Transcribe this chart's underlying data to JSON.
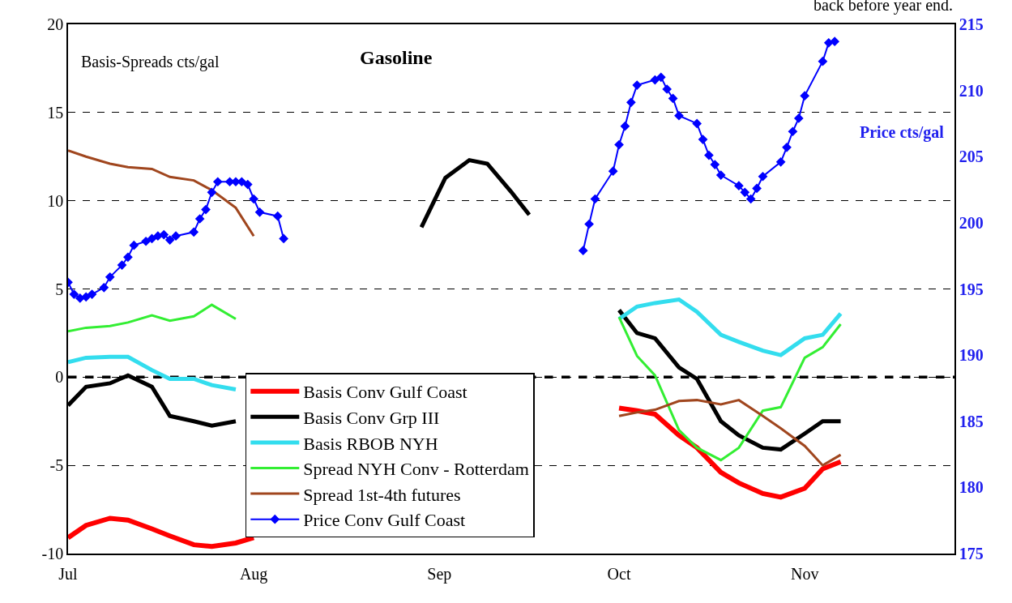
{
  "chart_data": {
    "type": "line",
    "title": "Gasoline",
    "ylabel": "Basis-Spreads cts/gal",
    "y2label": "Price cts/gal",
    "annotations": [
      "back before year end."
    ],
    "x": [
      "--07-01",
      "--07-04",
      "--07-08",
      "--07-11",
      "--07-15",
      "--07-18",
      "--07-22",
      "--07-25",
      "--07-29",
      "--08-01",
      "--08-15",
      "--08-29",
      "--09-02",
      "--09-06",
      "--09-09",
      "--09-13",
      "--09-16",
      "--09-23",
      "--10-01",
      "--10-04",
      "--10-07",
      "--10-11",
      "--10-14",
      "--10-18",
      "--10-21",
      "--10-25",
      "--10-28",
      "--11-01",
      "--11-04",
      "--11-07"
    ],
    "series": [
      {
        "name": "Basis Conv Gulf Coast",
        "color": "#ff0000",
        "values": [
          -9.1,
          -8.4,
          -8.0,
          -8.1,
          -8.6,
          -9.0,
          -9.5,
          -9.6,
          -9.4,
          -9.1,
          null,
          null,
          null,
          null,
          null,
          null,
          null,
          null,
          -1.75,
          -1.9,
          -2.1,
          -3.3,
          -4.0,
          -5.4,
          -6.0,
          -6.6,
          -6.8,
          -6.3,
          -5.2,
          -4.8
        ]
      },
      {
        "name": "Basis Conv Grp III",
        "color": "#000000",
        "values": [
          -1.6,
          -0.55,
          -0.35,
          0.1,
          -0.55,
          -2.2,
          -2.5,
          -2.75,
          -2.5,
          null,
          null,
          8.5,
          11.3,
          12.3,
          12.1,
          10.5,
          9.2,
          null,
          3.8,
          2.5,
          2.2,
          0.55,
          -0.1,
          -2.5,
          -3.3,
          -4.0,
          -4.1,
          -3.2,
          -2.5,
          -2.5
        ]
      },
      {
        "name": "Basis RBOB NYH",
        "color": "#33ddee",
        "values": [
          0.85,
          1.1,
          1.15,
          1.15,
          0.4,
          -0.1,
          -0.1,
          -0.45,
          -0.7,
          null,
          null,
          null,
          null,
          null,
          null,
          null,
          null,
          null,
          3.3,
          4.0,
          4.2,
          4.4,
          3.7,
          2.4,
          2.0,
          1.5,
          1.25,
          2.2,
          2.4,
          3.6
        ]
      },
      {
        "name": "Spread NYH Conv - Rotterdam",
        "color": "#33ee33",
        "values": [
          2.6,
          2.8,
          2.9,
          3.1,
          3.5,
          3.2,
          3.45,
          4.1,
          3.3,
          null,
          null,
          null,
          null,
          null,
          null,
          null,
          null,
          null,
          3.4,
          1.2,
          0.1,
          -3.0,
          -4.0,
          -4.7,
          -4.0,
          -1.9,
          -1.7,
          1.1,
          1.7,
          3.0
        ]
      },
      {
        "name": "Spread 1st-4th futures",
        "color": "#a0461e",
        "values": [
          12.85,
          12.5,
          12.1,
          11.9,
          11.8,
          11.35,
          11.15,
          10.6,
          9.6,
          8.0,
          null,
          null,
          null,
          null,
          null,
          null,
          null,
          null,
          -2.2,
          -2.0,
          -1.85,
          -1.35,
          -1.3,
          -1.55,
          -1.3,
          -2.2,
          -2.9,
          -3.9,
          -5.0,
          -4.4
        ]
      },
      {
        "name": "Price Conv Gulf Coast",
        "color": "#0000ff",
        "axis": "y2",
        "marker": "diamond",
        "x": [
          "--07-01",
          "--07-02",
          "--07-03",
          "--07-04",
          "--07-05",
          "--07-07",
          "--07-08",
          "--07-10",
          "--07-11",
          "--07-12",
          "--07-14",
          "--07-15",
          "--07-16",
          "--07-17",
          "--07-18",
          "--07-19",
          "--07-22",
          "--07-23",
          "--07-24",
          "--07-25",
          "--07-26",
          "--07-28",
          "--07-29",
          "--07-30",
          "--07-31",
          "--08-01",
          "--08-02",
          "--08-05",
          "--08-06",
          "--09-01",
          "--09-25",
          "--09-26",
          "--09-27",
          "--09-30",
          "--10-01",
          "--10-02",
          "--10-03",
          "--10-04",
          "--10-07",
          "--10-08",
          "--10-09",
          "--10-10",
          "--10-11",
          "--10-14",
          "--10-15",
          "--10-16",
          "--10-17",
          "--10-18",
          "--10-21",
          "--10-22",
          "--10-23",
          "--10-24",
          "--10-25",
          "--10-28",
          "--10-29",
          "--10-30",
          "--10-31",
          "--11-01",
          "--11-04",
          "--11-05",
          "--11-06"
        ],
        "values": [
          195.5,
          194.6,
          194.3,
          194.4,
          194.6,
          195.1,
          195.9,
          196.8,
          197.4,
          198.3,
          198.6,
          198.8,
          199.0,
          199.1,
          198.7,
          199.0,
          199.3,
          200.3,
          201.0,
          202.3,
          203.1,
          203.1,
          203.1,
          203.1,
          202.9,
          201.8,
          200.8,
          200.5,
          198.8,
          null,
          197.9,
          199.9,
          201.8,
          203.9,
          205.9,
          207.3,
          209.1,
          210.4,
          210.8,
          211.0,
          210.1,
          209.4,
          208.1,
          207.5,
          206.3,
          205.1,
          204.4,
          203.6,
          202.8,
          202.3,
          201.8,
          202.6,
          203.5,
          204.6,
          205.7,
          206.9,
          207.9,
          209.6,
          212.2,
          213.6,
          213.7
        ]
      }
    ],
    "xlim": [
      "--07-01",
      "--11-26"
    ],
    "xticks": [
      {
        "value": "--07-01",
        "label": "Jul"
      },
      {
        "value": "--08-01",
        "label": "Aug"
      },
      {
        "value": "--09-01",
        "label": "Sep"
      },
      {
        "value": "--10-01",
        "label": "Oct"
      },
      {
        "value": "--11-01",
        "label": "Nov"
      }
    ],
    "ylim": [
      -10,
      20
    ],
    "yticks": [
      -10,
      -5,
      0,
      5,
      10,
      15,
      20
    ],
    "y2lim": [
      175,
      215
    ],
    "y2ticks": [
      175,
      180,
      185,
      190,
      195,
      200,
      205,
      210,
      215
    ],
    "ref_lines": [
      {
        "axis": "y",
        "value": 0,
        "color": "#000000",
        "line_style": "dashed"
      }
    ],
    "grid": "y",
    "legend": "bottom left",
    "line_style": "solid"
  }
}
